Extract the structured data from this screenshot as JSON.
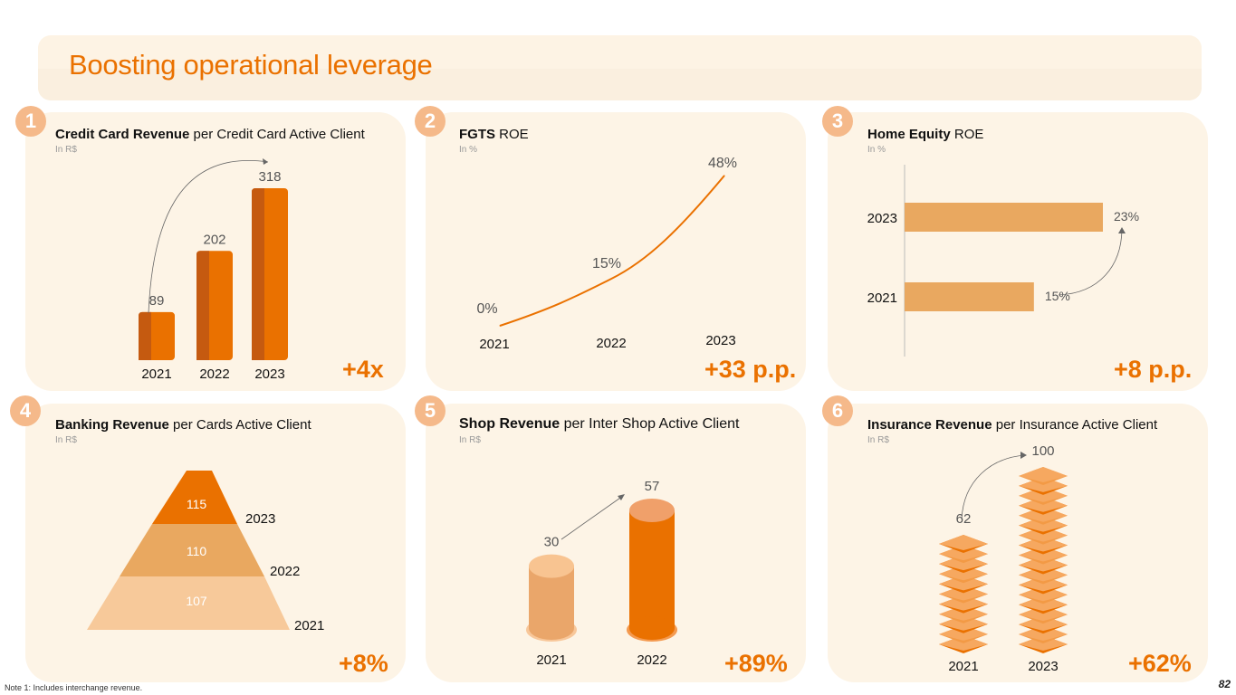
{
  "page": {
    "title": "Boosting operational leverage",
    "note": "Note 1: Includes interchange revenue.",
    "page_number": "82"
  },
  "colors": {
    "orange": "#ea7100",
    "dark_orange": "#c55a10",
    "mid_orange": "#e9a860",
    "light_orange": "#f7c99a",
    "card_bg": "#fdf4e6"
  },
  "chart_data": [
    {
      "id": "1",
      "type": "bar",
      "title_bold": "Credit Card Revenue",
      "title_rest": " per Credit Card Active Client",
      "subtitle": "In R$",
      "categories": [
        "2021",
        "2022",
        "2023"
      ],
      "values": [
        89,
        202,
        318
      ],
      "value_labels": [
        "89",
        "202",
        "318"
      ],
      "growth": "+4x"
    },
    {
      "id": "2",
      "type": "line",
      "title_bold": "FGTS",
      "title_rest": " ROE",
      "subtitle": "In %",
      "categories": [
        "2021",
        "2022",
        "2023"
      ],
      "values": [
        0,
        15,
        48
      ],
      "value_labels": [
        "0%",
        "15%",
        "48%"
      ],
      "growth": "+33 p.p."
    },
    {
      "id": "3",
      "type": "bar",
      "orientation": "horizontal",
      "title_bold": "Home Equity",
      "title_rest": " ROE",
      "subtitle": "In %",
      "categories": [
        "2023",
        "2021"
      ],
      "values": [
        23,
        15
      ],
      "value_labels": [
        "23%",
        "15%"
      ],
      "growth": "+8 p.p."
    },
    {
      "id": "4",
      "type": "pyramid",
      "title_bold": "Banking Revenue",
      "title_rest": " per Cards Active Client",
      "subtitle": "In R$",
      "categories": [
        "2023",
        "2022",
        "2021"
      ],
      "values": [
        115,
        110,
        107
      ],
      "value_labels": [
        "115",
        "110",
        "107"
      ],
      "growth": "+8%"
    },
    {
      "id": "5",
      "type": "bar",
      "style": "cylinder",
      "title_bold": "Shop Revenue",
      "title_rest": " per Inter Shop Active Client",
      "subtitle": "In R$",
      "categories": [
        "2021",
        "2022"
      ],
      "values": [
        30,
        57
      ],
      "value_labels": [
        "30",
        "57"
      ],
      "growth": "+89%"
    },
    {
      "id": "6",
      "type": "bar",
      "style": "stacked-tiles",
      "title_bold": "Insurance Revenue",
      "title_rest": " per Insurance Active Client",
      "subtitle": "In R$",
      "categories": [
        "2021",
        "2023"
      ],
      "values": [
        62,
        100
      ],
      "value_labels": [
        "62",
        "100"
      ],
      "growth": "+62%"
    }
  ]
}
